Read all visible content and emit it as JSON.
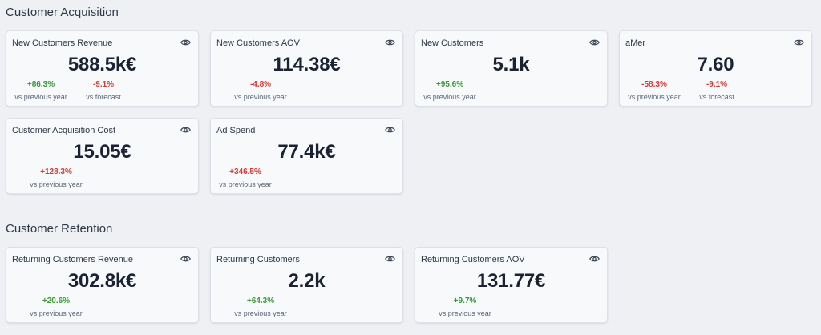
{
  "colors": {
    "positive": "#3a9a3a",
    "negative": "#d33a35",
    "background": "#eef0f4",
    "card": "#f8f9fb"
  },
  "acquisition": {
    "title": "Customer Acquisition",
    "cards": [
      {
        "title": "New Customers Revenue",
        "icon": "eye-icon",
        "value": "588.5k€",
        "deltas": [
          {
            "value": "+86.3%",
            "label": "vs previous year",
            "trend": "positive"
          },
          {
            "value": "-9.1%",
            "label": "vs forecast",
            "trend": "negative"
          }
        ]
      },
      {
        "title": "New Customers AOV",
        "icon": "eye-icon",
        "value": "114.38€",
        "deltas": [
          {
            "value": "-4.8%",
            "label": "vs previous year",
            "trend": "negative"
          }
        ]
      },
      {
        "title": "New Customers",
        "icon": "eye-icon",
        "value": "5.1k",
        "deltas": [
          {
            "value": "+95.6%",
            "label": "vs previous year",
            "trend": "positive"
          }
        ]
      },
      {
        "title": "aMer",
        "icon": "eye-icon",
        "value": "7.60",
        "deltas": [
          {
            "value": "-58.3%",
            "label": "vs previous year",
            "trend": "negative"
          },
          {
            "value": "-9.1%",
            "label": "vs forecast",
            "trend": "negative"
          }
        ]
      },
      {
        "title": "Customer Acquisition Cost",
        "icon": "eye-icon",
        "value": "15.05€",
        "deltas": [
          {
            "value": "+128.3%",
            "label": "vs previous year",
            "trend": "negative"
          }
        ]
      },
      {
        "title": "Ad Spend",
        "icon": "eye-icon",
        "value": "77.4k€",
        "deltas": [
          {
            "value": "+346.5%",
            "label": "vs previous year",
            "trend": "negative"
          }
        ]
      }
    ]
  },
  "retention": {
    "title": "Customer Retention",
    "cards": [
      {
        "title": "Returning Customers Revenue",
        "icon": "eye-icon",
        "value": "302.8k€",
        "deltas": [
          {
            "value": "+20.6%",
            "label": "vs previous year",
            "trend": "positive"
          }
        ]
      },
      {
        "title": "Returning Customers",
        "icon": "eye-icon",
        "value": "2.2k",
        "deltas": [
          {
            "value": "+64.3%",
            "label": "vs previous year",
            "trend": "positive"
          }
        ]
      },
      {
        "title": "Returning Customers AOV",
        "icon": "eye-icon",
        "value": "131.77€",
        "deltas": [
          {
            "value": "+9.7%",
            "label": "vs previous year",
            "trend": "positive"
          }
        ]
      }
    ]
  }
}
